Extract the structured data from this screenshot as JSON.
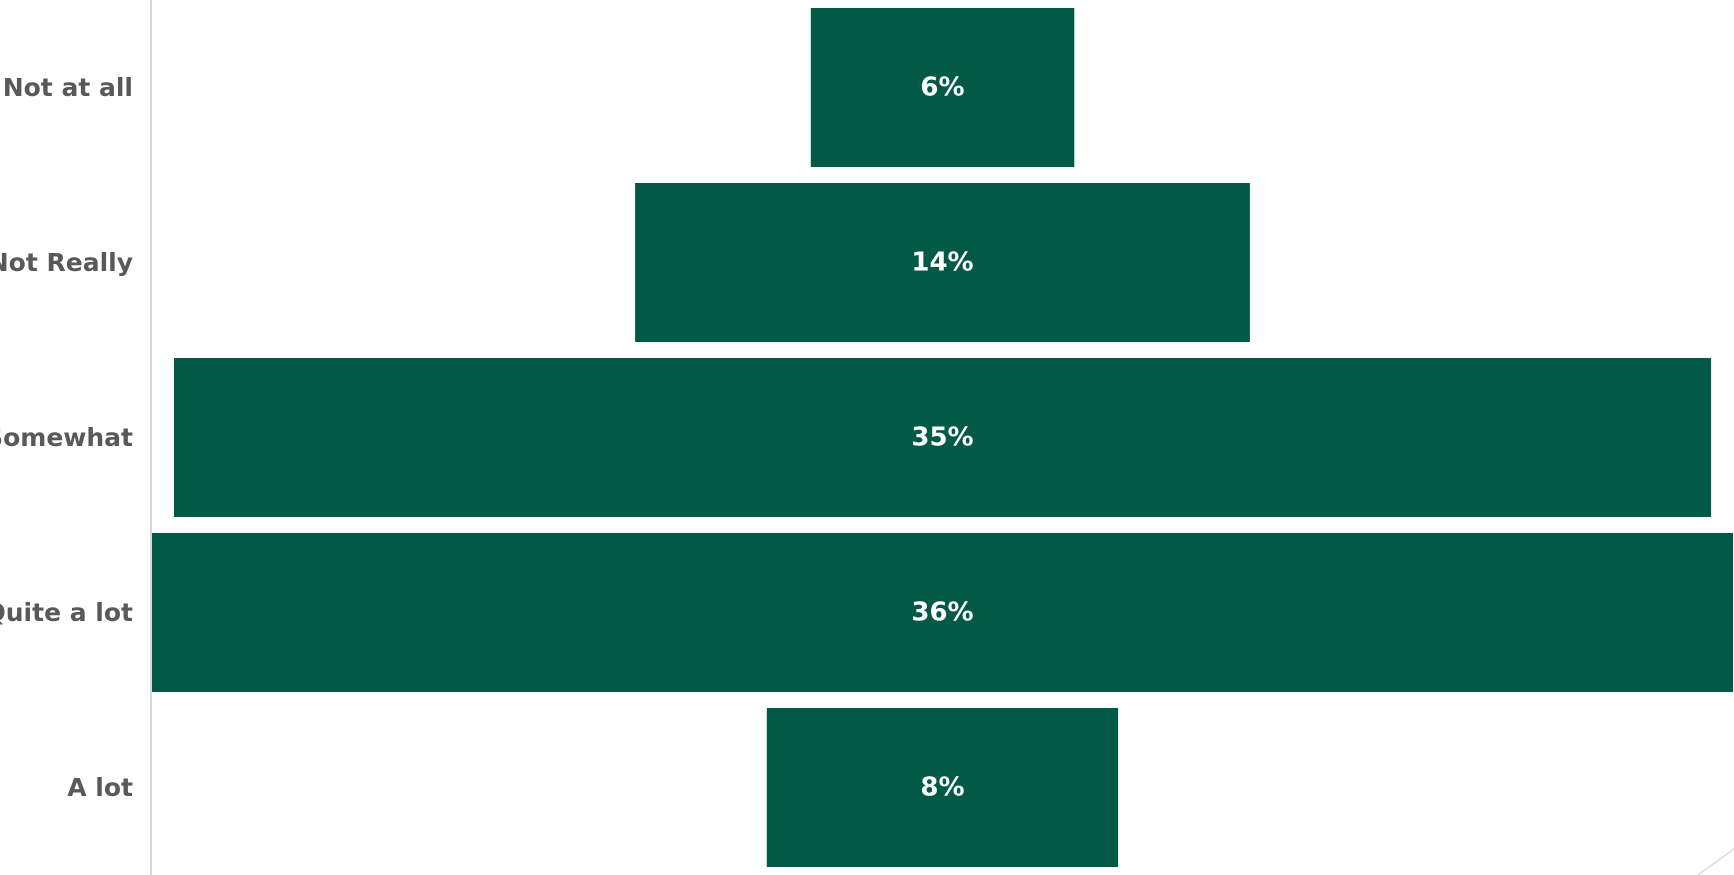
{
  "chart_data": {
    "type": "bar",
    "orientation": "horizontal",
    "layout": "funnel-centered",
    "categories": [
      "Not at all",
      "Not Really",
      "Somewhat",
      "Quite a lot",
      "A lot"
    ],
    "values": [
      6,
      14,
      35,
      36,
      8
    ],
    "value_labels": [
      "6%",
      "14%",
      "35%",
      "36%",
      "8%"
    ],
    "unit": "%",
    "title": "",
    "xlabel": "",
    "ylabel": "",
    "grid": false,
    "legend": "none",
    "colors": {
      "bar": "#025945",
      "value_text": "#ffffff",
      "category_text": "#595959",
      "axis_line": "#d9d9d9"
    }
  }
}
